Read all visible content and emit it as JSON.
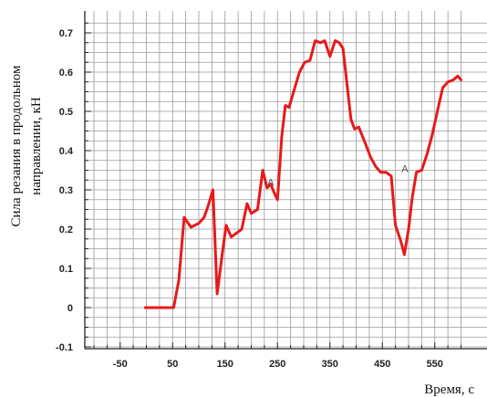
{
  "chart_data": {
    "type": "line",
    "xlabel": "Время, с",
    "ylabel": "Сила резания в продольном направлении, кН",
    "xlim": [
      -100,
      600
    ],
    "ylim": [
      -0.1,
      0.75
    ],
    "grid": true,
    "x_tick_labels": [
      "-50",
      "50",
      "150",
      "250",
      "350",
      "450",
      "550"
    ],
    "x_tick_values": [
      -50,
      50,
      150,
      250,
      350,
      450,
      550
    ],
    "y_tick_labels": [
      "-0.1",
      "0",
      "0.1",
      "0.2",
      "0.3",
      "0.4",
      "0.5",
      "0.6",
      "0.7"
    ],
    "y_tick_values": [
      -0.1,
      0,
      0.1,
      0.2,
      0.3,
      0.4,
      0.5,
      0.6,
      0.7
    ],
    "series": [
      {
        "color": "#e8191a",
        "x": [
          -2,
          45,
          52,
          62,
          72,
          85,
          100,
          110,
          118,
          127,
          135,
          145,
          152,
          162,
          172,
          182,
          192,
          200,
          212,
          222,
          230,
          237,
          243,
          250,
          258,
          265,
          272,
          282,
          292,
          302,
          312,
          322,
          332,
          340,
          350,
          360,
          368,
          375,
          380,
          390,
          397,
          405,
          417,
          427,
          437,
          447,
          457,
          467,
          475,
          485,
          492,
          500,
          507,
          515,
          525,
          535,
          545,
          555,
          565,
          575,
          585,
          594,
          600
        ],
        "y": [
          0,
          0,
          0,
          0.07,
          0.23,
          0.205,
          0.215,
          0.23,
          0.26,
          0.3,
          0.035,
          0.14,
          0.21,
          0.18,
          0.19,
          0.2,
          0.265,
          0.24,
          0.25,
          0.35,
          0.305,
          0.315,
          0.295,
          0.275,
          0.435,
          0.515,
          0.51,
          0.555,
          0.6,
          0.625,
          0.63,
          0.68,
          0.675,
          0.68,
          0.64,
          0.68,
          0.675,
          0.66,
          0.6,
          0.48,
          0.455,
          0.46,
          0.42,
          0.385,
          0.36,
          0.345,
          0.345,
          0.335,
          0.21,
          0.17,
          0.135,
          0.2,
          0.28,
          0.345,
          0.35,
          0.39,
          0.44,
          0.5,
          0.56,
          0.575,
          0.58,
          0.59,
          0.58
        ]
      }
    ],
    "annotations": [
      {
        "text": "A",
        "x": 237,
        "y": 0.31
      },
      {
        "text": "A",
        "x": 493,
        "y": 0.345
      }
    ]
  }
}
